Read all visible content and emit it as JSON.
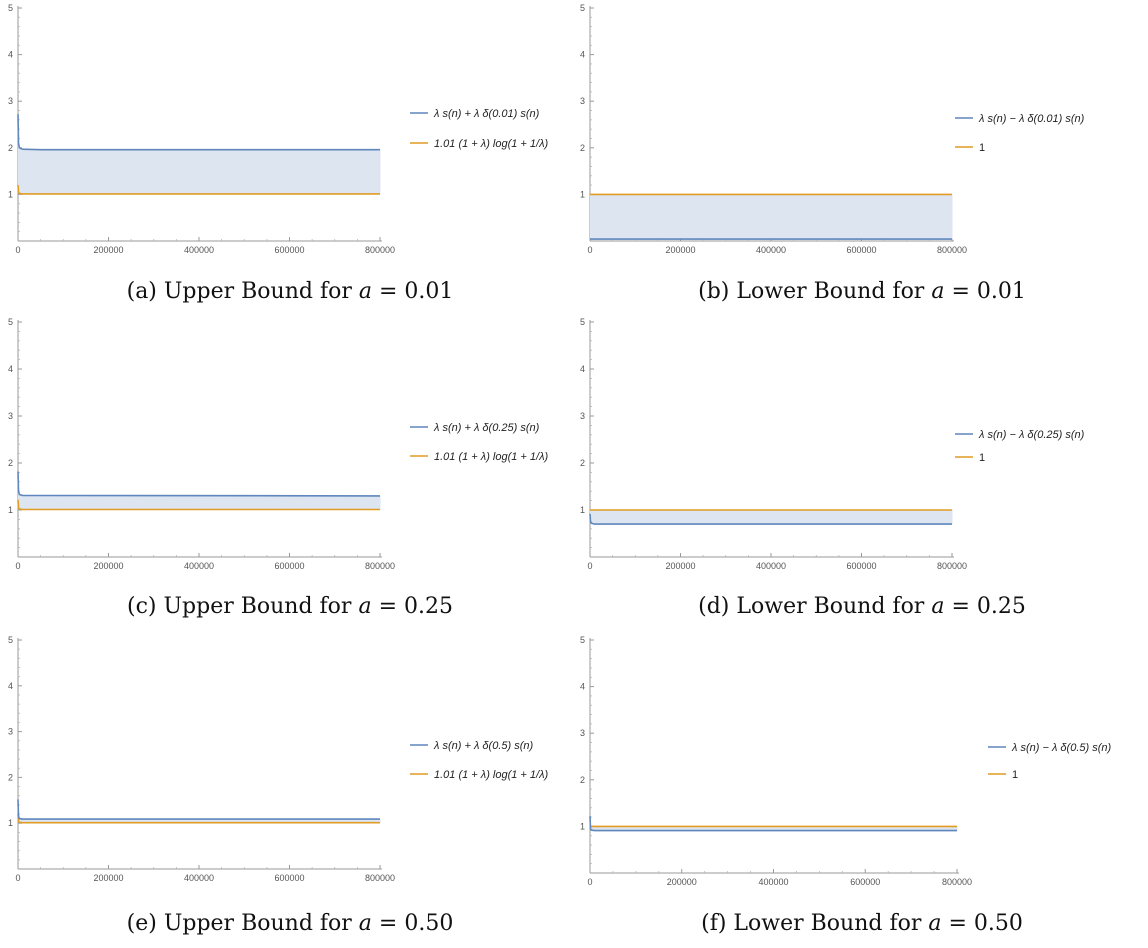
{
  "colors": {
    "blue": "#5f86bd",
    "orange": "#e19c24",
    "fill": "#dde5f0"
  },
  "chart_data": [
    {
      "type": "line",
      "caption": "(a) Upper Bound for a = 0.01",
      "caption_prefix": "(a) Upper Bound for ",
      "caption_var": "a",
      "caption_value": " = 0.01",
      "xlim": [
        0,
        800000
      ],
      "ylim": [
        0,
        5
      ],
      "x_ticks": [
        "0",
        "200000",
        "400000",
        "600000",
        "800000"
      ],
      "y_ticks": [
        "1",
        "2",
        "3",
        "4",
        "5"
      ],
      "fill_between": true,
      "series": [
        {
          "name": "λ s(n) + λ δ(0.01) s(n)",
          "color": "#5f86bd",
          "x": [
            0,
            1000,
            3000,
            10000,
            50000,
            800000
          ],
          "values": [
            2.72,
            2.1,
            2.0,
            1.97,
            1.96,
            1.96
          ]
        },
        {
          "name": "1.01 (1 + λ) log(1 + 1/λ)",
          "color": "#e19c24",
          "x": [
            0,
            1000,
            3000,
            10000,
            800000
          ],
          "values": [
            1.2,
            1.05,
            1.02,
            1.01,
            1.01
          ]
        }
      ]
    },
    {
      "type": "line",
      "caption": "(b) Lower Bound for a = 0.01",
      "caption_prefix": "(b) Lower Bound for ",
      "caption_var": "a",
      "caption_value": " = 0.01",
      "xlim": [
        0,
        800000
      ],
      "ylim": [
        0,
        5
      ],
      "x_ticks": [
        "0",
        "200000",
        "400000",
        "600000",
        "800000"
      ],
      "y_ticks": [
        "1",
        "2",
        "3",
        "4",
        "5"
      ],
      "fill_between": true,
      "series": [
        {
          "name": "λ s(n) − λ δ(0.01) s(n)",
          "color": "#5f86bd",
          "x": [
            0,
            2000,
            800000
          ],
          "values": [
            0.05,
            0.04,
            0.04
          ]
        },
        {
          "name": "1",
          "color": "#e19c24",
          "x": [
            0,
            800000
          ],
          "values": [
            1,
            1
          ]
        }
      ]
    },
    {
      "type": "line",
      "caption": "(c) Upper Bound for a = 0.25",
      "caption_prefix": "(c) Upper Bound for ",
      "caption_var": "a",
      "caption_value": " = 0.25",
      "xlim": [
        0,
        800000
      ],
      "ylim": [
        0,
        5
      ],
      "x_ticks": [
        "0",
        "200000",
        "400000",
        "600000",
        "800000"
      ],
      "y_ticks": [
        "1",
        "2",
        "3",
        "4",
        "5"
      ],
      "fill_between": true,
      "series": [
        {
          "name": "λ s(n) + λ δ(0.25) s(n)",
          "color": "#5f86bd",
          "x": [
            0,
            1000,
            3000,
            10000,
            800000
          ],
          "values": [
            1.82,
            1.4,
            1.33,
            1.31,
            1.3
          ]
        },
        {
          "name": "1.01 (1 + λ) log(1 + 1/λ)",
          "color": "#e19c24",
          "x": [
            0,
            1000,
            3000,
            10000,
            800000
          ],
          "values": [
            1.22,
            1.05,
            1.02,
            1.01,
            1.01
          ]
        }
      ]
    },
    {
      "type": "line",
      "caption": "(d) Lower Bound for a = 0.25",
      "caption_prefix": "(d) Lower Bound for ",
      "caption_var": "a",
      "caption_value": " = 0.25",
      "xlim": [
        0,
        800000
      ],
      "ylim": [
        0,
        5
      ],
      "x_ticks": [
        "0",
        "200000",
        "400000",
        "600000",
        "800000"
      ],
      "y_ticks": [
        "1",
        "2",
        "3",
        "4",
        "5"
      ],
      "fill_between": true,
      "series": [
        {
          "name": "λ s(n) − λ δ(0.25) s(n)",
          "color": "#5f86bd",
          "x": [
            0,
            1000,
            3000,
            10000,
            800000
          ],
          "values": [
            0.92,
            0.76,
            0.72,
            0.7,
            0.7
          ]
        },
        {
          "name": "1",
          "color": "#e19c24",
          "x": [
            0,
            800000
          ],
          "values": [
            1,
            1
          ]
        }
      ]
    },
    {
      "type": "line",
      "caption": "(e) Upper Bound for a = 0.50",
      "caption_prefix": "(e) Upper Bound for ",
      "caption_var": "a",
      "caption_value": " = 0.50",
      "xlim": [
        0,
        800000
      ],
      "ylim": [
        0,
        5
      ],
      "x_ticks": [
        "0",
        "200000",
        "400000",
        "600000",
        "800000"
      ],
      "y_ticks": [
        "1",
        "2",
        "3",
        "4",
        "5"
      ],
      "fill_between": true,
      "series": [
        {
          "name": "λ s(n) + λ δ(0.5) s(n)",
          "color": "#5f86bd",
          "x": [
            0,
            1000,
            3000,
            10000,
            800000
          ],
          "values": [
            1.52,
            1.15,
            1.1,
            1.09,
            1.09
          ]
        },
        {
          "name": "1.01 (1 + λ) log(1 + 1/λ)",
          "color": "#e19c24",
          "x": [
            0,
            1000,
            3000,
            10000,
            800000
          ],
          "values": [
            1.2,
            1.04,
            1.02,
            1.01,
            1.01
          ]
        }
      ]
    },
    {
      "type": "line",
      "caption": "(f) Lower Bound for a = 0.50",
      "caption_prefix": "(f) Lower Bound for ",
      "caption_var": "a",
      "caption_value": " = 0.50",
      "xlim": [
        0,
        800000
      ],
      "ylim": [
        0,
        5
      ],
      "x_ticks": [
        "0",
        "200000",
        "400000",
        "600000",
        "800000"
      ],
      "y_ticks": [
        "1",
        "2",
        "3",
        "4",
        "5"
      ],
      "fill_between": true,
      "series": [
        {
          "name": "λ s(n) − λ δ(0.5) s(n)",
          "color": "#5f86bd",
          "x": [
            0,
            1000,
            3000,
            10000,
            800000
          ],
          "values": [
            1.22,
            0.95,
            0.92,
            0.91,
            0.91
          ]
        },
        {
          "name": "1",
          "color": "#e19c24",
          "x": [
            0,
            800000
          ],
          "values": [
            1,
            1
          ]
        }
      ]
    }
  ]
}
